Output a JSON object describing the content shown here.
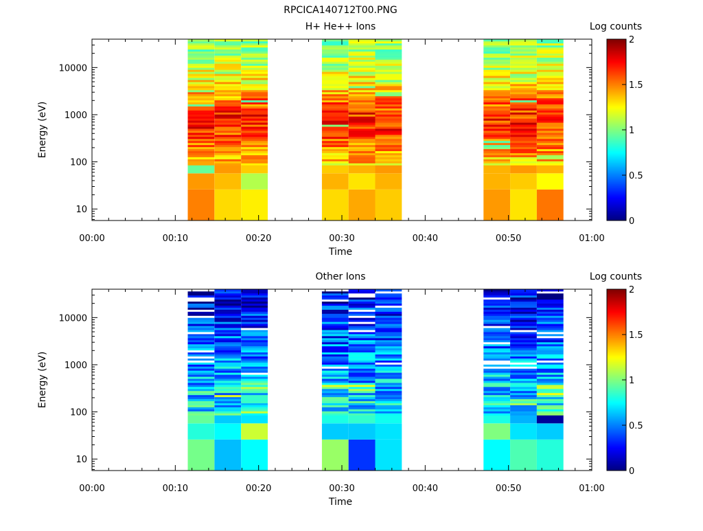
{
  "figure": {
    "title": "RPCICA140712T00.PNG"
  },
  "chart_data": [
    {
      "type": "heatmap",
      "title": "H+ He++ Ions",
      "xlabel": "Time",
      "ylabel": "Energy (eV)",
      "y_scale": "log",
      "ylim": [
        5.7,
        40000
      ],
      "x_ticks": [
        "00:00",
        "00:10",
        "00:20",
        "00:30",
        "00:40",
        "00:50",
        "01:00"
      ],
      "y_ticks": [
        "10",
        "100",
        "1000",
        "10000"
      ],
      "colorbar": {
        "label": "Log counts",
        "range": [
          0,
          2
        ],
        "ticks": [
          "0",
          "0.5",
          "1",
          "1.5",
          "2"
        ]
      },
      "colormap": [
        "#00007f",
        "#0000ff",
        "#007fff",
        "#00ffff",
        "#7fff7f",
        "#ffff00",
        "#ff7f00",
        "#ff0000",
        "#7f0000"
      ],
      "time_columns_minutes": [
        [
          11.5,
          14.7
        ],
        [
          14.7,
          17.9
        ],
        [
          17.9,
          21.1
        ],
        [
          27.6,
          30.8
        ],
        [
          30.8,
          34.0
        ],
        [
          34.0,
          37.2
        ],
        [
          47.0,
          50.2
        ],
        [
          50.2,
          53.4
        ],
        [
          53.4,
          56.6
        ]
      ],
      "colors_note_level_by_column": [
        [
          1.45,
          1.5,
          1.6,
          1.75,
          1.8,
          1.7,
          1.55,
          1.35,
          1.3
        ],
        [
          1.3,
          1.4,
          1.7,
          1.8,
          1.85,
          1.75,
          1.55,
          1.45,
          1.4
        ],
        [
          1.3,
          1.05,
          1.6,
          1.65,
          1.7,
          1.55,
          1.35,
          1.25,
          1.15
        ]
      ],
      "low_energy_bands": [
        {
          "energy_range_eV": [
            5.7,
            26
          ],
          "levels": [
            1.5,
            1.32,
            1.28,
            1.32,
            1.42,
            1.35,
            1.45,
            1.3,
            1.52
          ]
        },
        {
          "energy_range_eV": [
            26,
            57
          ],
          "levels": [
            1.45,
            1.38,
            1.1,
            1.4,
            1.3,
            1.4,
            1.4,
            1.35,
            1.25
          ]
        },
        {
          "energy_range_eV": [
            57,
            85
          ],
          "levels": [
            0.95,
            1.45,
            1.35,
            1.35,
            1.4,
            1.45,
            1.4,
            1.45,
            1.4
          ]
        }
      ]
    },
    {
      "type": "heatmap",
      "title": "Other Ions",
      "xlabel": "Time",
      "ylabel": "Energy (eV)",
      "y_scale": "log",
      "ylim": [
        5.7,
        40000
      ],
      "x_ticks": [
        "00:00",
        "00:10",
        "00:20",
        "00:30",
        "00:40",
        "00:50",
        "01:00"
      ],
      "y_ticks": [
        "10",
        "100",
        "1000",
        "10000"
      ],
      "colorbar": {
        "label": "Log counts",
        "range": [
          0,
          2
        ],
        "ticks": [
          "0",
          "0.5",
          "1",
          "1.5",
          "2"
        ]
      },
      "colormap": [
        "#00007f",
        "#0000ff",
        "#007fff",
        "#00ffff",
        "#7fff7f",
        "#ffff00",
        "#ff7f00",
        "#ff0000",
        "#7f0000"
      ],
      "time_columns_minutes": [
        [
          11.5,
          14.7
        ],
        [
          14.7,
          17.9
        ],
        [
          17.9,
          21.1
        ],
        [
          27.6,
          30.8
        ],
        [
          30.8,
          34.0
        ],
        [
          34.0,
          37.2
        ],
        [
          47.0,
          50.2
        ],
        [
          50.2,
          53.4
        ],
        [
          53.4,
          56.6
        ]
      ],
      "low_energy_bands": [
        {
          "energy_range_eV": [
            5.7,
            26
          ],
          "levels": [
            0.98,
            0.62,
            0.75,
            1.05,
            0.35,
            0.7,
            0.75,
            0.9,
            0.82
          ]
        },
        {
          "energy_range_eV": [
            26,
            57
          ],
          "levels": [
            0.82,
            0.75,
            1.15,
            0.65,
            0.65,
            0.7,
            1.0,
            0.7,
            0.65
          ]
        },
        {
          "energy_range_eV": [
            57,
            85
          ],
          "levels": [
            0.95,
            0.65,
            0.7,
            0.8,
            0.85,
            0.78,
            0.8,
            0.6,
            0.05
          ]
        }
      ]
    }
  ]
}
